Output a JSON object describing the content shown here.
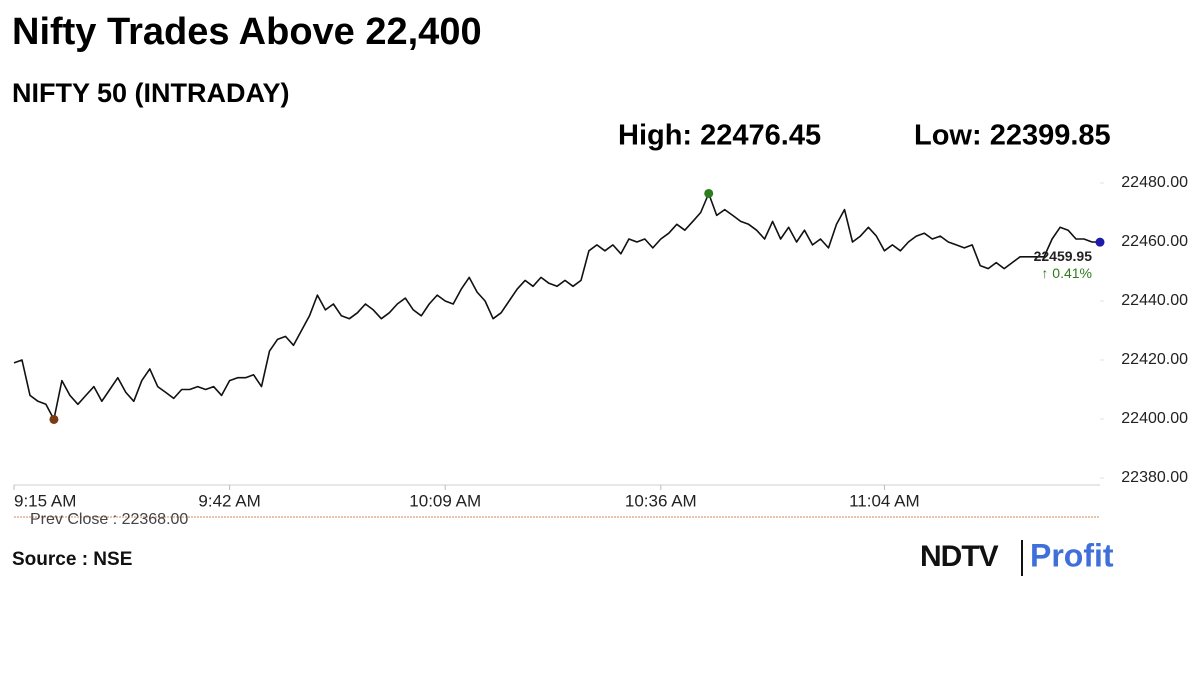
{
  "chart_data": {
    "type": "line",
    "title": "Nifty Trades Above 22,400",
    "subtitle": "NIFTY 50 (INTRADAY)",
    "high_label": "High: 22476.45",
    "low_label": "Low: 22399.85",
    "last_value_label": "22459.95",
    "change_label": "↑ 0.41%",
    "prev_close_label": "Prev Close : 22368.00",
    "source": "Source : NSE",
    "logo": {
      "brand": "NDTV",
      "product": "Profit"
    },
    "color": "#111111",
    "high_color": "#2e7d1e",
    "low_color": "#7a3b12",
    "last_color": "#1c1ca8",
    "change_color": "#2e7d1e",
    "categories": [
      "9:15 AM",
      null,
      null,
      null,
      null,
      null,
      null,
      null,
      null,
      null,
      null,
      null,
      null,
      null,
      null,
      null,
      null,
      null,
      null,
      null,
      null,
      null,
      null,
      null,
      null,
      null,
      null,
      "9:42 AM",
      null,
      null,
      null,
      null,
      null,
      null,
      null,
      null,
      null,
      null,
      null,
      null,
      null,
      null,
      null,
      null,
      null,
      null,
      null,
      null,
      null,
      null,
      null,
      null,
      null,
      null,
      "10:09 AM",
      null,
      null,
      null,
      null,
      null,
      null,
      null,
      null,
      null,
      null,
      null,
      null,
      null,
      null,
      null,
      null,
      null,
      null,
      null,
      null,
      null,
      null,
      null,
      null,
      null,
      null,
      "10:36 AM",
      null,
      null,
      null,
      null,
      null,
      null,
      null,
      null,
      null,
      null,
      null,
      null,
      null,
      null,
      null,
      null,
      null,
      null,
      null,
      null,
      null,
      null,
      null,
      null,
      null,
      null,
      null,
      "11:04 AM",
      null,
      null,
      null,
      null,
      null,
      null,
      null,
      null,
      null,
      null,
      null,
      null,
      null,
      null,
      null,
      null,
      null,
      null,
      null,
      null,
      null,
      null,
      null,
      null,
      null,
      null,
      null
    ],
    "values": [
      22419,
      22420,
      22408,
      22406,
      22405,
      22399.85,
      22413,
      22408,
      22405,
      22408,
      22411,
      22406,
      22410,
      22414,
      22409,
      22406,
      22413,
      22417,
      22411,
      22409,
      22407,
      22410,
      22410,
      22411,
      22410,
      22411,
      22408,
      22413,
      22414,
      22414,
      22415,
      22411,
      22423,
      22427,
      22428,
      22425,
      22430,
      22435,
      22442,
      22437,
      22439,
      22435,
      22434,
      22436,
      22439,
      22437,
      22434,
      22436,
      22439,
      22441,
      22437,
      22435,
      22439,
      22442,
      22440,
      22439,
      22444,
      22448,
      22443,
      22440,
      22434,
      22436,
      22440,
      22444,
      22447,
      22445,
      22448,
      22446,
      22445,
      22447,
      22445,
      22447,
      22457,
      22459,
      22457,
      22459,
      22456,
      22461,
      22460,
      22461,
      22458,
      22461,
      22463,
      22466,
      22464,
      22467,
      22470,
      22476.45,
      22469,
      22471,
      22469,
      22467,
      22466,
      22464,
      22461,
      22467,
      22461,
      22465,
      22460,
      22464,
      22459,
      22461,
      22458,
      22466,
      22471,
      22460,
      22462,
      22465,
      22462,
      22457,
      22459,
      22457,
      22460,
      22462,
      22463,
      22461,
      22462,
      22460,
      22459,
      22458,
      22459,
      22452,
      22451,
      22453,
      22451,
      22453,
      22455,
      22455,
      22455,
      22455,
      22461,
      22465,
      22464,
      22461,
      22461,
      22460,
      22459.95
    ],
    "ylim": [
      22380,
      22480
    ],
    "yticks": [
      {
        "value": 22380,
        "label": "22380.00"
      },
      {
        "value": 22400,
        "label": "22400.00"
      },
      {
        "value": 22420,
        "label": "22420.00"
      },
      {
        "value": 22440,
        "label": "22440.00"
      },
      {
        "value": 22460,
        "label": "22460.00"
      },
      {
        "value": 22480,
        "label": "22480.00"
      }
    ],
    "grid": false
  }
}
